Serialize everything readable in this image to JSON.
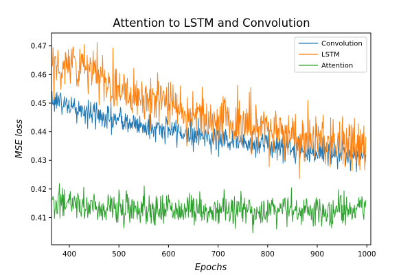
{
  "chart_data": {
    "type": "line",
    "title": "Attention to LSTM and Convolution",
    "xlabel": "Epochs",
    "ylabel": "MSE loss",
    "xlim": [
      364,
      1008
    ],
    "ylim": [
      0.4005,
      0.4745
    ],
    "x_ticks": [
      {
        "value": 400,
        "label": "400"
      },
      {
        "value": 500,
        "label": "500"
      },
      {
        "value": 600,
        "label": "600"
      },
      {
        "value": 700,
        "label": "700"
      },
      {
        "value": 800,
        "label": "800"
      },
      {
        "value": 900,
        "label": "900"
      },
      {
        "value": 1000,
        "label": "1000"
      }
    ],
    "y_ticks": [
      {
        "value": 0.41,
        "label": "0.41"
      },
      {
        "value": 0.42,
        "label": "0.42"
      },
      {
        "value": 0.43,
        "label": "0.43"
      },
      {
        "value": 0.44,
        "label": "0.44"
      },
      {
        "value": 0.45,
        "label": "0.45"
      },
      {
        "value": 0.46,
        "label": "0.46"
      },
      {
        "value": 0.47,
        "label": "0.47"
      }
    ],
    "grid": false,
    "legend_position": "top-right",
    "x": [
      365,
      380,
      400,
      420,
      440,
      460,
      480,
      500,
      520,
      540,
      560,
      580,
      600,
      620,
      640,
      660,
      680,
      700,
      720,
      740,
      760,
      780,
      800,
      820,
      840,
      860,
      880,
      900,
      920,
      940,
      960,
      980,
      998
    ],
    "series": [
      {
        "name": "Convolution",
        "color": "#1f77b4",
        "noise": 0.0023,
        "values": [
          0.452,
          0.4505,
          0.449,
          0.4475,
          0.4465,
          0.4455,
          0.4445,
          0.444,
          0.443,
          0.4425,
          0.4418,
          0.441,
          0.4405,
          0.44,
          0.4395,
          0.4388,
          0.4382,
          0.4378,
          0.4372,
          0.4368,
          0.4362,
          0.4358,
          0.4355,
          0.435,
          0.4345,
          0.434,
          0.4335,
          0.433,
          0.4328,
          0.4325,
          0.4322,
          0.432,
          0.4318
        ]
      },
      {
        "name": "LSTM",
        "color": "#ff7f0e",
        "noise": 0.0045,
        "values": [
          0.462,
          0.463,
          0.464,
          0.463,
          0.461,
          0.459,
          0.457,
          0.456,
          0.454,
          0.453,
          0.452,
          0.4505,
          0.449,
          0.448,
          0.447,
          0.446,
          0.445,
          0.4445,
          0.444,
          0.443,
          0.442,
          0.4415,
          0.441,
          0.44,
          0.439,
          0.4385,
          0.438,
          0.4375,
          0.437,
          0.436,
          0.4355,
          0.435,
          0.435
        ]
      },
      {
        "name": "Attention",
        "color": "#2ca02c",
        "noise": 0.0028,
        "values": [
          0.415,
          0.4148,
          0.4145,
          0.4142,
          0.414,
          0.4138,
          0.4136,
          0.4134,
          0.4133,
          0.4132,
          0.4131,
          0.413,
          0.413,
          0.4129,
          0.4128,
          0.4128,
          0.4127,
          0.4126,
          0.4126,
          0.4126,
          0.4125,
          0.4125,
          0.4125,
          0.4125,
          0.4125,
          0.4125,
          0.4125,
          0.4125,
          0.4125,
          0.4125,
          0.4125,
          0.4125,
          0.4125
        ]
      }
    ]
  }
}
